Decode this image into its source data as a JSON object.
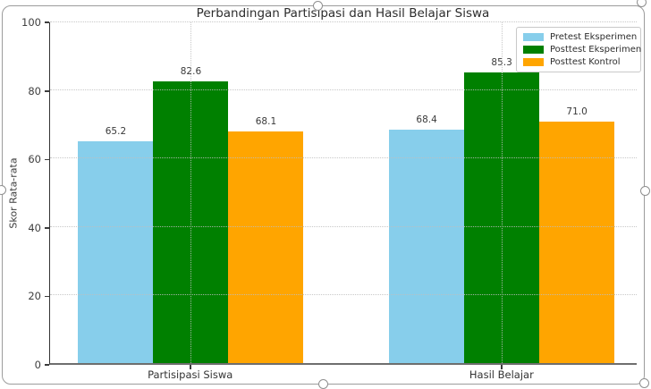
{
  "chart_data": {
    "type": "bar",
    "title": "Perbandingan Partisipasi dan Hasil Belajar Siswa",
    "xlabel": "",
    "ylabel": "Skor Rata-rata",
    "categories": [
      "Partisipasi Siswa",
      "Hasil Belajar"
    ],
    "series": [
      {
        "name": "Pretest Eksperimen",
        "color": "#87CEEB",
        "values": [
          65.2,
          68.4
        ]
      },
      {
        "name": "Posttest Eksperimen",
        "color": "#008000",
        "values": [
          82.6,
          85.3
        ]
      },
      {
        "name": "Posttest Kontrol",
        "color": "#FFA500",
        "values": [
          68.1,
          71.0
        ]
      }
    ],
    "ylim": [
      0,
      100
    ],
    "yticks": [
      0,
      20,
      40,
      60,
      80,
      100
    ],
    "grid": true,
    "legend_position": "upper right",
    "bar_labels": true
  }
}
